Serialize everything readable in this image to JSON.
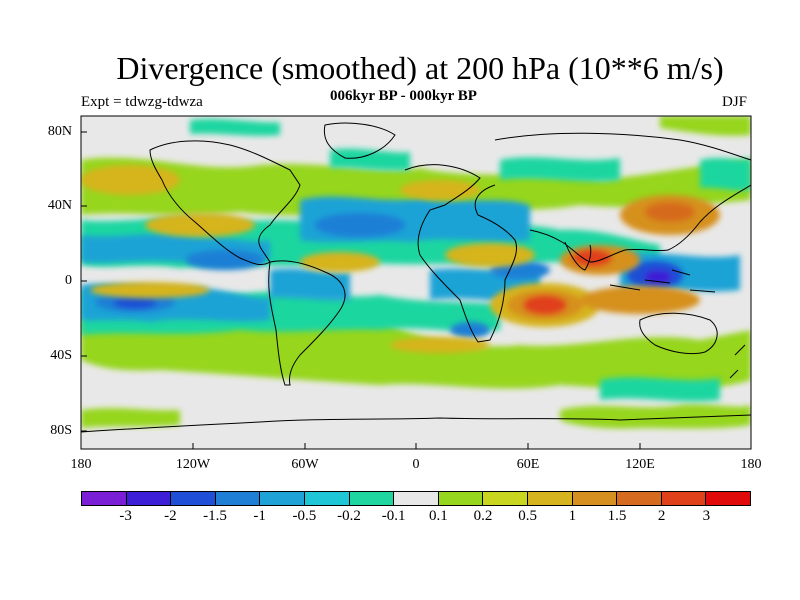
{
  "title": "Divergence (smoothed) at 200 hPa (10**6 m/s)",
  "subtitle": "006kyr BP - 000kyr BP",
  "experiment": "Expt = tdwzg-tdwza",
  "season": "DJF",
  "x_axis_labels": [
    "180",
    "120W",
    "60W",
    "0",
    "60E",
    "120E",
    "180"
  ],
  "y_axis_labels": [
    "80N",
    "40N",
    "0",
    "40S",
    "80S"
  ],
  "colorbar": {
    "colors": [
      "#7a1fd6",
      "#3c1fd6",
      "#1f4fd6",
      "#1f7fd6",
      "#1fa3d6",
      "#1fc6d6",
      "#1fd6a0",
      "#e8e8e8",
      "#96d61f",
      "#c8d61f",
      "#d6b41f",
      "#d6901f",
      "#d66a1f",
      "#e0401a",
      "#e00a0a"
    ],
    "labels": [
      "-3",
      "-2",
      "-1.5",
      "-1",
      "-0.5",
      "-0.2",
      "-0.1",
      "0.1",
      "0.2",
      "0.5",
      "1",
      "1.5",
      "2",
      "3"
    ]
  },
  "colors": {
    "background": "#e8e8e8",
    "coastline": "#000000"
  }
}
